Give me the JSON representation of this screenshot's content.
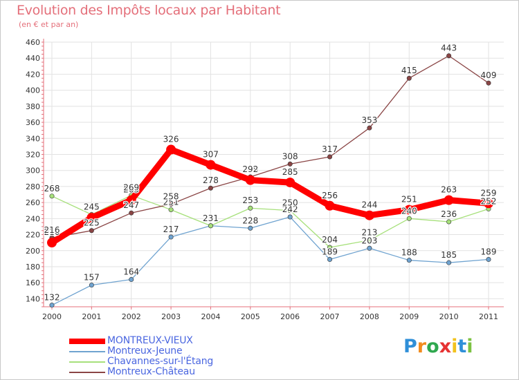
{
  "colors": {
    "title": "#e46f7a",
    "axis": "#e46f7a",
    "grid": "#e2e2e2",
    "legend_text": "#4a66e0",
    "montreux_vieux": "#ff0000",
    "montreux_jeune": "#6fa3d0",
    "chavannes": "#a6e07a",
    "montreux_chateau": "#8a4545"
  },
  "logo": {
    "text": "Proxiti",
    "letters": [
      "P",
      "r",
      "o",
      "x",
      "i",
      "t",
      "i"
    ],
    "letter_colors": [
      "#2f8fd8",
      "#f28c1e",
      "#2fa84f",
      "#e63333",
      "#f2c21e",
      "#2f8fd8",
      "#7cc242"
    ]
  },
  "chart_data": {
    "type": "line",
    "title": "Evolution des Impôts locaux par Habitant",
    "subtitle": "(en € et par an)",
    "xlabel": "",
    "ylabel": "",
    "categories": [
      "2000",
      "2001",
      "2002",
      "2003",
      "2004",
      "2005",
      "2006",
      "2007",
      "2008",
      "2009",
      "2010",
      "2011"
    ],
    "ylim": [
      130,
      460
    ],
    "yticks": [
      140,
      160,
      180,
      200,
      220,
      240,
      260,
      280,
      300,
      320,
      340,
      360,
      380,
      400,
      420,
      440,
      460
    ],
    "grid": true,
    "legend_position": "bottom-left",
    "series": [
      {
        "name": "MONTREUX-VIEUX",
        "color": "#ff0000",
        "bold": true,
        "values": [
          210,
          241,
          263,
          326,
          307,
          288,
          285,
          256,
          244,
          251,
          263,
          259
        ],
        "labels": [
          "210",
          "241",
          "263",
          "326",
          "307",
          "288",
          "285",
          "256",
          "244",
          "251",
          "263",
          "259"
        ]
      },
      {
        "name": "Montreux-Jeune",
        "color": "#6fa3d0",
        "bold": false,
        "values": [
          132,
          157,
          164,
          217,
          231,
          228,
          242,
          189,
          203,
          188,
          185,
          189
        ],
        "labels": [
          "132",
          "157",
          "164",
          "217",
          "231",
          "228",
          "242",
          "189",
          "203",
          "188",
          "185",
          "189"
        ]
      },
      {
        "name": "Chavannes-sur-l'Étang",
        "color": "#a6e07a",
        "bold": false,
        "values": [
          268,
          245,
          269,
          251,
          231,
          253,
          250,
          204,
          213,
          240,
          236,
          252
        ],
        "labels": [
          "268",
          "245",
          "269",
          "251",
          "231",
          "253",
          "250",
          "204",
          "213",
          "240",
          "236",
          "252"
        ]
      },
      {
        "name": "Montreux-Château",
        "color": "#8a4545",
        "bold": false,
        "values": [
          216,
          225,
          247,
          258,
          278,
          292,
          308,
          317,
          353,
          415,
          443,
          409
        ],
        "labels": [
          "216",
          "225",
          "247",
          "258",
          "278",
          "292",
          "308",
          "317",
          "353",
          "415",
          "443",
          "409"
        ]
      }
    ]
  }
}
